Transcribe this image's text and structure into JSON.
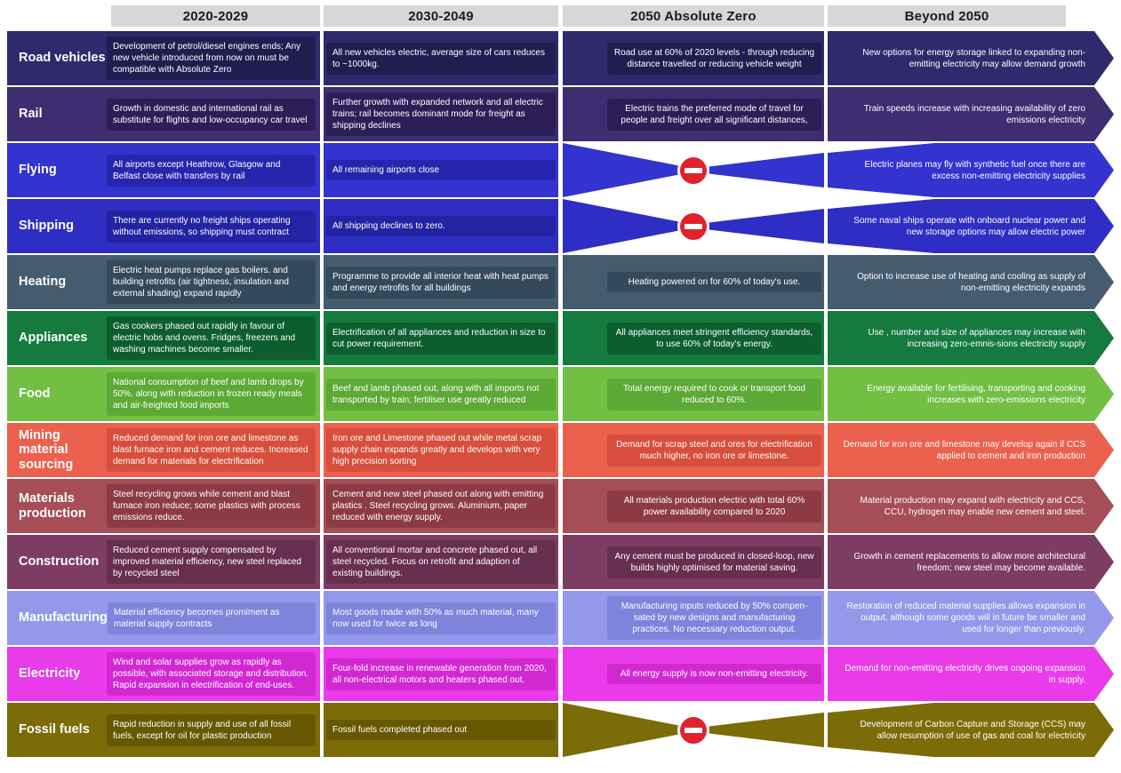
{
  "header": {
    "columns": [
      "2020-2029",
      "2030-2049",
      "2050 Absolute Zero",
      "Beyond 2050"
    ],
    "bar_color": "#d7d7d7"
  },
  "no_entry_sign": {
    "icon": "no-entry",
    "color": "#e0222a"
  },
  "rows": [
    {
      "label": "Road vehicles",
      "band_color": "#2e2a6b",
      "box_color": "#201d51",
      "pinch": false,
      "cells": {
        "c1": "Development of petrol/diesel engines ends; Any new vehicle introduced from now on must be compatible with Absolute Zero",
        "c2": "All new vehicles electric, average size of cars reduces to ~1000kg.",
        "c3": "Road use at 60% of 2020 levels - through reducing distance travelled or reducing vehicle weight",
        "c4": "New options for energy storage linked to expanding non-emitting electricity may allow demand growth"
      }
    },
    {
      "label": "Rail",
      "band_color": "#3e2d70",
      "box_color": "#2c1f57",
      "pinch": false,
      "cells": {
        "c1": "Growth in domestic and international rail as substitute for flights and low-occupancy car travel",
        "c2": "Further growth with expanded network and all electric trains; rail becomes dominant mode for freight as shipping declines",
        "c3": "Electric trains the preferred mode of travel for people and freight over all significant distances,",
        "c4": "Train speeds increase with increasing availability of zero emissions electricity"
      }
    },
    {
      "label": "Flying",
      "band_color": "#3333cf",
      "box_color": "#2626ad",
      "pinch": true,
      "cells": {
        "c1": "All airports except Heathrow, Glasgow and Belfast close with transfers by rail",
        "c2": "All remaining airports close",
        "c3": null,
        "c4": "Electric planes may fly with synthetic fuel once  there are excess non-emitting electricity supplies"
      }
    },
    {
      "label": "Shipping",
      "band_color": "#2e2ec4",
      "box_color": "#2323a4",
      "pinch": true,
      "cells": {
        "c1": "There are currently no freight ships operating without emissions, so shipping must contract",
        "c2": "All shipping declines to zero.",
        "c3": null,
        "c4": "Some naval ships operate with onboard nuclear power and new storage options may allow electric power"
      }
    },
    {
      "label": "Heating",
      "band_color": "#455c6f",
      "box_color": "#334a5b",
      "pinch": false,
      "cells": {
        "c1": "Electric heat pumps replace gas boilers. and building retrofits (air tightness, insulation and external shading) expand rapidly",
        "c2": "Programme to provide all interior heat with heat pumps and energy retrofits for all buildings",
        "c3": "Heating powered on for 60% of today's use.",
        "c4": "Option to increase use of heating and cooling as supply of non-emitting electricity expands"
      }
    },
    {
      "label": "Appliances",
      "band_color": "#157a3e",
      "box_color": "#0c5e2e",
      "pinch": false,
      "cells": {
        "c1": "Gas cookers phased out rapidly in favour of electric hobs and ovens. Fridges, freezers and washing machines become smaller.",
        "c2": "Electrification of all appliances and reduction in size to cut power requirement.",
        "c3": "All appliances meet stringent efficiency standards, to use 60% of today's energy.",
        "c4": "Use , number and size of appliances  may increase with increasing zero-emnis-sions electricity supply"
      }
    },
    {
      "label": "Food",
      "band_color": "#72bf44",
      "box_color": "#5da935",
      "pinch": false,
      "cells": {
        "c1": "National consumption of beef and lamb drops by 50%, along with reduction in frozen ready meals and air-freighted food imports",
        "c2": "Beef and lamb phased out, along with all imports not transported by train; fertiliser use greatly reduced",
        "c3": "Total energy required to cook or transport food reduced to 60%.",
        "c4": "Energy available for fertilising, transporting and cooking increases with zero-emissions electricity"
      }
    },
    {
      "label": "Mining  material sourcing",
      "band_color": "#ec614d",
      "box_color": "#d84e3c",
      "pinch": false,
      "cells": {
        "c1": "Reduced demand for iron ore and limestone as blast furnace iron and cement reduces. Increased demand for materials for electrification",
        "c2": "Iron ore and Limestone phased out while metal scrap supply chain expands greatly and develops with very high precision sorting",
        "c3": "Demand for scrap steel and ores for electrification much higher, no iron ore or limestone.",
        "c4": "Demand for iron ore and limestone may develop again if CCS applied to cement and iron production"
      }
    },
    {
      "label": "Materials production",
      "band_color": "#a54e58",
      "box_color": "#8c3b45",
      "pinch": false,
      "cells": {
        "c1": "Steel recycling grows while cement and blast furnace iron reduce; some plastics with process emissions reduce.",
        "c2": "Cement and new steel phased out along with emitting plastics . Steel recycling grows. Aluminium, paper reduced with energy supply.",
        "c3": "All materials production electric with total 60% power availability compared to 2020",
        "c4": "Material production may expand with electricity and CCS, CCU, hydrogen may enable new cement and steel."
      }
    },
    {
      "label": "Construction",
      "band_color": "#7d3c62",
      "box_color": "#672e50",
      "pinch": false,
      "cells": {
        "c1": "Reduced cement supply compensated by improved material efficiency, new steel replaced by recycled steel",
        "c2": "All conventional mortar and concrete phased out, all steel recycled. Focus on retrofit and adaption of existing buildings.",
        "c3": "Any cement must be produced in closed-loop, new builds highly optimised for material saving.",
        "c4": "Growth in cement replacements to allow more architectural freedom; new steel may become available."
      }
    },
    {
      "label": "Manufacturing",
      "band_color": "#9398ea",
      "box_color": "#7e84dc",
      "pinch": false,
      "cells": {
        "c1": "Material efficiency becomes promiment as material supply contracts",
        "c2": "Most goods made with 50% as much material, many now used for twice as long",
        "c3": "Manufacturing inputs reduced by 50% compen-sated by new designs and manufacturing practices. No necessary reduction output.",
        "c4": "Restoration of reduced material supplies allows expansion in output, although some goods will in future be smaller and used for longer than previously."
      }
    },
    {
      "label": "Electricity",
      "band_color": "#e93be9",
      "box_color": "#d228d2",
      "pinch": false,
      "cells": {
        "c1": "Wind and solar supplies grow as rapidly as possible, with associated storage and distribution. Rapid expansion in electrification of end-uses.",
        "c2": "Four-fold increase in renewable generation from 2020, all non-electrical motors and heaters phased out.",
        "c3": "All energy supply is now non-emitting electricity.",
        "c4": "Demand for non-emitting electricity drives ongoing expansion in supply."
      }
    },
    {
      "label": "Fossil fuels",
      "band_color": "#7b6c08",
      "box_color": "#655800",
      "pinch": true,
      "cells": {
        "c1": "Rapid reduction in supply and use of all fossil fuels, except for oil for plastic production",
        "c2": "Fossil fuels completed phased out",
        "c3": null,
        "c4": "Development of Carbon Capture and Storage (CCS) may allow resumption of use of gas and coal for electricity"
      }
    }
  ]
}
